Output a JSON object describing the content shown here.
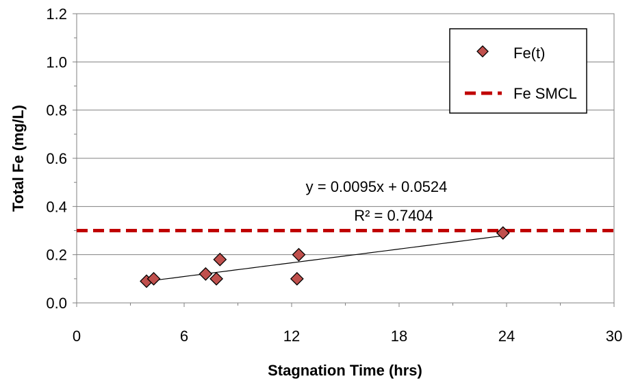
{
  "chart_data": {
    "type": "scatter",
    "title": "",
    "xlabel": "Stagnation Time (hrs)",
    "ylabel": "Total Fe (mg/L)",
    "xlim": [
      0,
      30
    ],
    "ylim": [
      0,
      1.2
    ],
    "x_ticks": [
      0,
      6,
      12,
      18,
      24,
      30
    ],
    "y_ticks": [
      "0.0",
      "0.2",
      "0.4",
      "0.6",
      "0.8",
      "1.0",
      "1.2"
    ],
    "grid": "horizontal",
    "legend_position": "top-right",
    "series": [
      {
        "name": "Fe(t)",
        "marker": "diamond",
        "color": "#c0504d",
        "points": [
          {
            "x": 3.9,
            "y": 0.09
          },
          {
            "x": 4.3,
            "y": 0.1
          },
          {
            "x": 7.2,
            "y": 0.12
          },
          {
            "x": 7.8,
            "y": 0.1
          },
          {
            "x": 8.0,
            "y": 0.18
          },
          {
            "x": 12.3,
            "y": 0.1
          },
          {
            "x": 12.4,
            "y": 0.2
          },
          {
            "x": 23.8,
            "y": 0.29
          }
        ]
      },
      {
        "name": "Fe SMCL",
        "style": "dashed",
        "color": "#c00000",
        "y": 0.3
      }
    ],
    "trendline": {
      "equation": "y = 0.0095x + 0.0524",
      "r_squared": "R² = 0.7404",
      "color": "#000000"
    }
  }
}
